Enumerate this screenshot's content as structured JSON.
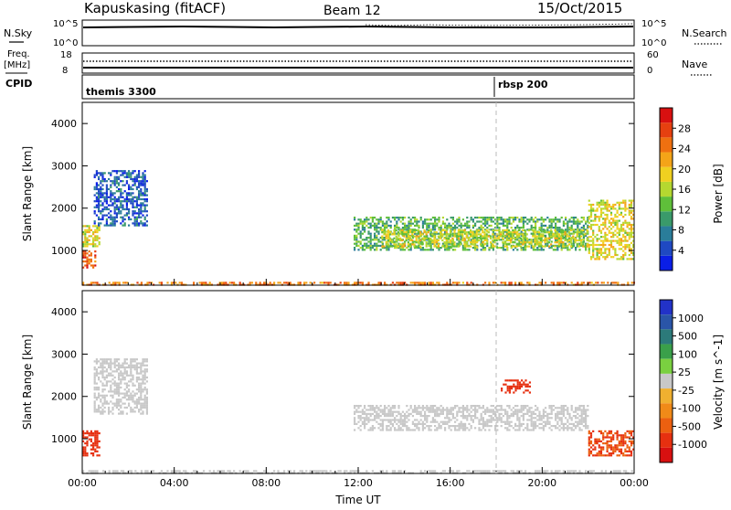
{
  "header": {
    "station": "Kapuskasing (fitACF)",
    "beam": "Beam 12",
    "date": "15/Oct/2015"
  },
  "top_panels": {
    "nsky_label": "N.Sky",
    "nsky_ticks": [
      "10^5",
      "10^0"
    ],
    "nsearch_label": "N.Search",
    "nsearch_ticks": [
      "10^5",
      "10^0"
    ],
    "freq_label": "Freq.",
    "freq_unit": "[MHz]",
    "freq_ticks": [
      "18",
      "8"
    ],
    "nave_label": "Nave",
    "nave_ticks": [
      "60",
      "0"
    ],
    "cpid_label": "CPID",
    "cpid_segments": [
      {
        "name": "themis 3300",
        "start_hour": 0
      },
      {
        "name": "rbsp 200",
        "start_hour": 18.0
      }
    ]
  },
  "chart_data": [
    {
      "type": "heatmap",
      "name": "power",
      "xlabel": "",
      "ylabel": "Slant Range [km]",
      "xlim": [
        0,
        24
      ],
      "ylim": [
        180,
        4500
      ],
      "y_ticks": [
        "1000",
        "2000",
        "3000",
        "4000"
      ],
      "colorbar": {
        "label": "Power [dB]",
        "ticks": [
          "4",
          "8",
          "12",
          "16",
          "20",
          "24",
          "28"
        ],
        "colors": [
          "#0a1ee6",
          "#1f49c2",
          "#2a7d9a",
          "#3a9a6a",
          "#5fbf3a",
          "#b5d830",
          "#f0d020",
          "#f4a418",
          "#ef7010",
          "#e64010",
          "#d81010"
        ]
      },
      "regions": [
        {
          "t0": 0.0,
          "t1": 0.6,
          "r0": 600,
          "r1": 1000,
          "level": 26
        },
        {
          "t0": 0.0,
          "t1": 0.7,
          "r0": 1100,
          "r1": 1600,
          "level": 18
        },
        {
          "t0": 0.5,
          "t1": 2.8,
          "r0": 1600,
          "r1": 2900,
          "level": 6
        },
        {
          "t0": 11.8,
          "t1": 22.0,
          "r0": 1000,
          "r1": 1800,
          "level": 12
        },
        {
          "t0": 13.0,
          "t1": 22.0,
          "r0": 1100,
          "r1": 1500,
          "level": 17
        },
        {
          "t0": 22.0,
          "t1": 24.0,
          "r0": 800,
          "r1": 2200,
          "level": 18
        },
        {
          "t0": 0.0,
          "t1": 24.0,
          "r0": 180,
          "r1": 260,
          "level": 24
        }
      ]
    },
    {
      "type": "heatmap",
      "name": "velocity",
      "xlabel": "Time UT",
      "ylabel": "Slant Range [km]",
      "xlim": [
        0,
        24
      ],
      "ylim": [
        180,
        4500
      ],
      "x_ticks": [
        "00:00",
        "04:00",
        "08:00",
        "12:00",
        "16:00",
        "20:00",
        "00:00"
      ],
      "y_ticks": [
        "1000",
        "2000",
        "3000",
        "4000"
      ],
      "colorbar": {
        "label": "Velocity [m s^-1]",
        "ticks": [
          "1000",
          "500",
          "100",
          "25",
          "-25",
          "-100",
          "-500",
          "-1000"
        ],
        "colors": [
          "#2232c8",
          "#2a55a8",
          "#2c7a7a",
          "#3aa04a",
          "#7ad040",
          "#c8c8c8",
          "#f0b030",
          "#f08a18",
          "#ec6010",
          "#e63010",
          "#d81010"
        ]
      },
      "regions": [
        {
          "t0": 0.0,
          "t1": 0.7,
          "r0": 600,
          "r1": 1200,
          "level": -300
        },
        {
          "t0": 0.5,
          "t1": 2.8,
          "r0": 1600,
          "r1": 2900,
          "level": 0
        },
        {
          "t0": 11.8,
          "t1": 22.0,
          "r0": 1200,
          "r1": 1800,
          "level": 0
        },
        {
          "t0": 18.2,
          "t1": 19.5,
          "r0": 2100,
          "r1": 2400,
          "level": -300
        },
        {
          "t0": 22.0,
          "t1": 24.0,
          "r0": 600,
          "r1": 1200,
          "level": -250
        },
        {
          "t0": 0.0,
          "t1": 24.0,
          "r0": 180,
          "r1": 260,
          "level": 0
        }
      ]
    }
  ]
}
